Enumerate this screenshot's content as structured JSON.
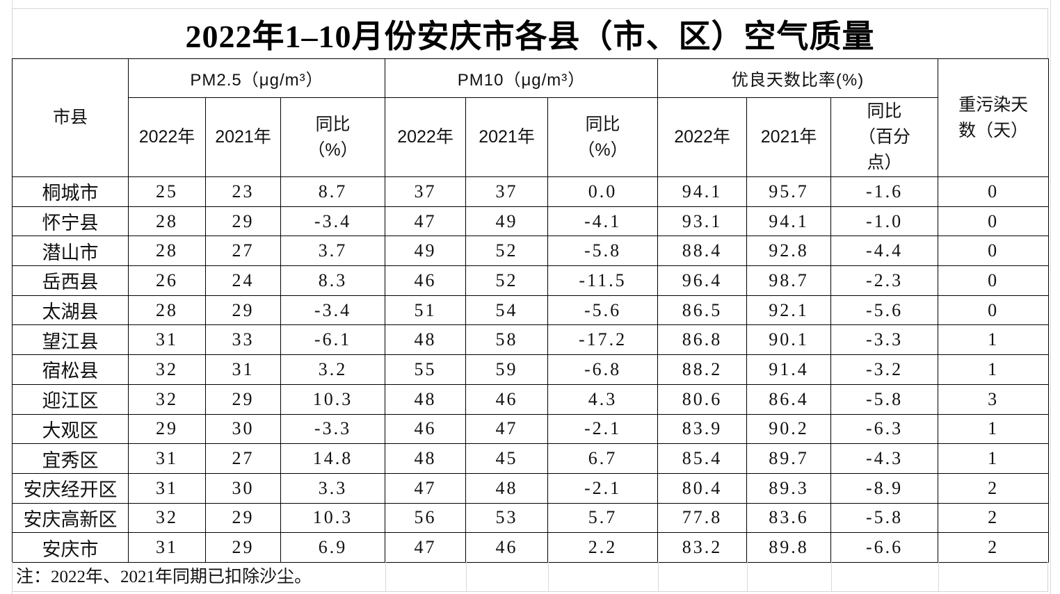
{
  "title": "2022年1–10月份安庆市各县（市、区）空气质量",
  "header": {
    "region": "市县",
    "pm25": "PM2.5（μg/m³）",
    "pm10": "PM10（μg/m³）",
    "good_days": "优良天数比率(%)",
    "heavy_days": "重污染天\n数（天）",
    "year_2022": "2022年",
    "year_2021": "2021年",
    "yoy_percent": "同比\n（%）",
    "yoy_points": "同比\n（百分\n点）"
  },
  "rows": [
    [
      "桐城市",
      "25",
      "23",
      "8.7",
      "37",
      "37",
      "0.0",
      "94.1",
      "95.7",
      "-1.6",
      "0"
    ],
    [
      "怀宁县",
      "28",
      "29",
      "-3.4",
      "47",
      "49",
      "-4.1",
      "93.1",
      "94.1",
      "-1.0",
      "0"
    ],
    [
      "潜山市",
      "28",
      "27",
      "3.7",
      "49",
      "52",
      "-5.8",
      "88.4",
      "92.8",
      "-4.4",
      "0"
    ],
    [
      "岳西县",
      "26",
      "24",
      "8.3",
      "46",
      "52",
      "-11.5",
      "96.4",
      "98.7",
      "-2.3",
      "0"
    ],
    [
      "太湖县",
      "28",
      "29",
      "-3.4",
      "51",
      "54",
      "-5.6",
      "86.5",
      "92.1",
      "-5.6",
      "0"
    ],
    [
      "望江县",
      "31",
      "33",
      "-6.1",
      "48",
      "58",
      "-17.2",
      "86.8",
      "90.1",
      "-3.3",
      "1"
    ],
    [
      "宿松县",
      "32",
      "31",
      "3.2",
      "55",
      "59",
      "-6.8",
      "88.2",
      "91.4",
      "-3.2",
      "1"
    ],
    [
      "迎江区",
      "32",
      "29",
      "10.3",
      "48",
      "46",
      "4.3",
      "80.6",
      "86.4",
      "-5.8",
      "3"
    ],
    [
      "大观区",
      "29",
      "30",
      "-3.3",
      "46",
      "47",
      "-2.1",
      "83.9",
      "90.2",
      "-6.3",
      "1"
    ],
    [
      "宜秀区",
      "31",
      "27",
      "14.8",
      "48",
      "45",
      "6.7",
      "85.4",
      "89.7",
      "-4.3",
      "1"
    ],
    [
      "安庆经开区",
      "31",
      "30",
      "3.3",
      "47",
      "48",
      "-2.1",
      "80.4",
      "89.3",
      "-8.9",
      "2"
    ],
    [
      "安庆高新区",
      "32",
      "29",
      "10.3",
      "56",
      "53",
      "5.7",
      "77.8",
      "83.6",
      "-5.8",
      "2"
    ],
    [
      "安庆市",
      "31",
      "29",
      "6.9",
      "47",
      "46",
      "2.2",
      "83.2",
      "89.8",
      "-6.6",
      "2"
    ]
  ],
  "note": "注：2022年、2021年同期已扣除沙尘。"
}
